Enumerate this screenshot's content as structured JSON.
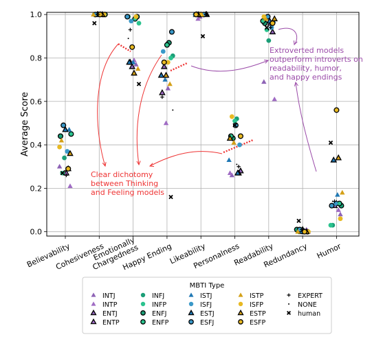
{
  "chart_data": {
    "type": "scatter",
    "ylabel": "Average Score",
    "ylim": [
      -0.02,
      1.01
    ],
    "yticks": [
      0.0,
      0.2,
      0.4,
      0.6,
      0.8,
      1.0
    ],
    "ytick_labels": [
      "0.0",
      "0.2",
      "0.4",
      "0.6",
      "0.8",
      "1.0"
    ],
    "grid": true,
    "categories": [
      "Believability",
      "Cohesiveness",
      "Emotionally\nChargedness",
      "Happy Ending",
      "Likeability",
      "Personalness",
      "Readability",
      "Redundancy",
      "Humor"
    ],
    "legend": {
      "title": "MBTI Type",
      "placement": "bottom-center"
    },
    "series": [
      {
        "name": "INTJ",
        "marker": "triangle",
        "color": "#8e63b6",
        "edge": "none",
        "values": [
          0.3,
          1.0,
          0.77,
          0.66,
          0.99,
          0.26,
          0.69,
          0.0,
          0.08
        ]
      },
      {
        "name": "INTP",
        "marker": "triangle",
        "color": "#a06cc4",
        "edge": "none",
        "values": [
          0.21,
          1.0,
          0.79,
          0.5,
          0.98,
          0.27,
          0.61,
          0.01,
          0.1
        ]
      },
      {
        "name": "ENTJ",
        "marker": "triangle",
        "color": "#8e63b6",
        "edge": "black",
        "values": [
          0.29,
          1.0,
          0.76,
          0.76,
          1.0,
          0.28,
          0.92,
          0.0,
          0.13
        ]
      },
      {
        "name": "ENTP",
        "marker": "triangle",
        "color": "#a06cc4",
        "edge": "black",
        "values": [
          0.27,
          1.0,
          0.78,
          0.64,
          1.0,
          0.27,
          0.96,
          0.01,
          0.12
        ]
      },
      {
        "name": "INFJ",
        "marker": "circle",
        "color": "#1b9e77",
        "edge": "none",
        "values": [
          0.34,
          1.0,
          0.99,
          0.81,
          1.0,
          0.52,
          0.88,
          0.01,
          0.03
        ]
      },
      {
        "name": "INFP",
        "marker": "circle",
        "color": "#2bc38e",
        "edge": "none",
        "values": [
          0.27,
          1.0,
          0.96,
          0.8,
          1.0,
          0.51,
          0.93,
          0.0,
          0.03
        ]
      },
      {
        "name": "ENFJ",
        "marker": "circle",
        "color": "#1b9e77",
        "edge": "black",
        "values": [
          0.44,
          1.0,
          0.99,
          0.87,
          1.0,
          0.43,
          0.96,
          0.01,
          0.12
        ]
      },
      {
        "name": "ENFP",
        "marker": "circle",
        "color": "#2bc38e",
        "edge": "black",
        "values": [
          0.45,
          1.0,
          0.98,
          0.86,
          1.0,
          0.44,
          0.97,
          0.0,
          0.13
        ]
      },
      {
        "name": "ISTJ",
        "marker": "triangle",
        "color": "#1f78b4",
        "edge": "none",
        "values": [
          0.47,
          1.0,
          0.78,
          0.7,
          1.0,
          0.33,
          0.97,
          0.0,
          0.17
        ]
      },
      {
        "name": "ISFJ",
        "marker": "circle",
        "color": "#3a98c8",
        "edge": "none",
        "values": [
          0.37,
          1.0,
          0.97,
          0.83,
          1.0,
          0.4,
          0.94,
          0.0,
          0.13
        ]
      },
      {
        "name": "ESTJ",
        "marker": "triangle",
        "color": "#1f78b4",
        "edge": "black",
        "values": [
          0.47,
          1.0,
          0.78,
          0.72,
          1.0,
          0.27,
          0.97,
          0.0,
          0.33
        ]
      },
      {
        "name": "ESFJ",
        "marker": "circle",
        "color": "#3a98c8",
        "edge": "black",
        "values": [
          0.49,
          1.0,
          0.99,
          0.92,
          1.0,
          0.49,
          0.99,
          0.01,
          0.12
        ]
      },
      {
        "name": "ISTP",
        "marker": "triangle",
        "color": "#d4a017",
        "edge": "none",
        "values": [
          0.42,
          1.0,
          0.75,
          0.68,
          1.0,
          0.41,
          0.98,
          0.0,
          0.18
        ]
      },
      {
        "name": "ISFP",
        "marker": "circle",
        "color": "#e8b923",
        "edge": "none",
        "values": [
          0.39,
          1.0,
          0.99,
          0.78,
          1.0,
          0.53,
          0.99,
          0.0,
          0.06
        ]
      },
      {
        "name": "ESTP",
        "marker": "triangle",
        "color": "#d4a017",
        "edge": "black",
        "values": [
          0.36,
          1.0,
          0.73,
          0.72,
          1.0,
          0.43,
          0.98,
          0.0,
          0.34
        ]
      },
      {
        "name": "ESFP",
        "marker": "circle",
        "color": "#e8b923",
        "edge": "black",
        "values": [
          0.29,
          1.0,
          0.85,
          0.78,
          1.0,
          0.44,
          0.96,
          0.0,
          0.56
        ]
      },
      {
        "name": "EXPERT",
        "marker": "plus",
        "color": "#000000",
        "edge": "none",
        "values": [
          0.26,
          1.0,
          0.93,
          0.62,
          1.0,
          0.3,
          0.94,
          0.01,
          0.14
        ]
      },
      {
        "name": "NONE",
        "marker": "point",
        "color": "#000000",
        "edge": "none",
        "values": [
          0.28,
          1.0,
          0.89,
          0.56,
          1.0,
          0.31,
          0.93,
          0.01,
          0.14
        ]
      },
      {
        "name": "human",
        "marker": "x",
        "color": "#000000",
        "edge": "none",
        "values": [
          0.27,
          0.96,
          0.68,
          0.16,
          0.9,
          0.49,
          0.94,
          0.05,
          0.41
        ]
      }
    ],
    "annotations": [
      {
        "id": "red",
        "text": [
          "Clear dichotomy",
          "between Thinking",
          "and Feeling models"
        ],
        "color": "#ee3333"
      },
      {
        "id": "purple",
        "text": [
          "Extroverted models",
          "outperform introverts on",
          "readability, humor,",
          "and happy endings"
        ],
        "color": "#9a4aa8"
      }
    ]
  }
}
